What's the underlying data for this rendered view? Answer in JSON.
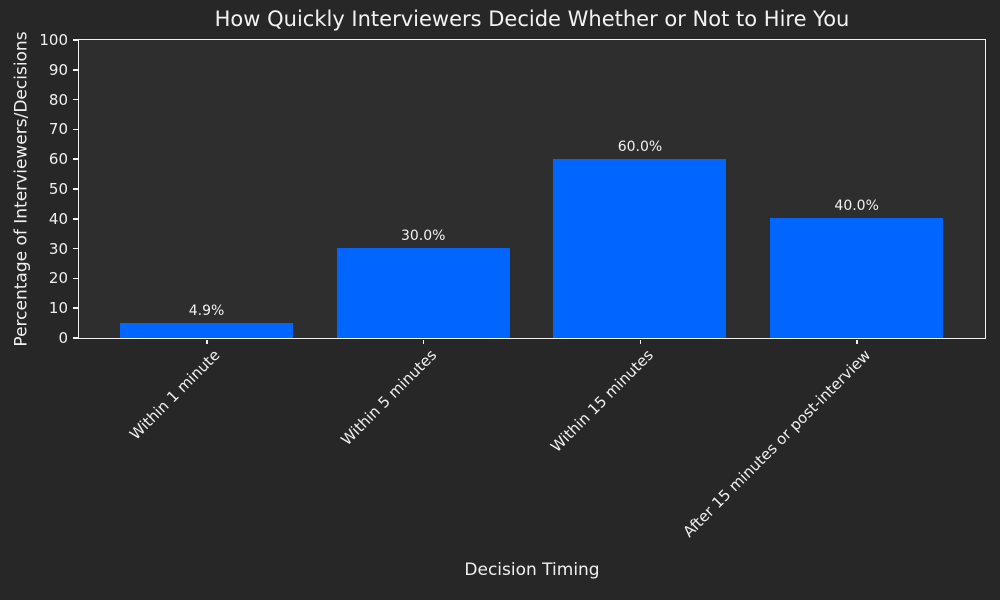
{
  "chart_data": {
    "type": "bar",
    "title": "How Quickly Interviewers Decide Whether or Not to Hire You",
    "xlabel": "Decision Timing",
    "ylabel": "Percentage of Interviewers/Decisions",
    "categories": [
      "Within 1 minute",
      "Within 5 minutes",
      "Within 15 minutes",
      "After 15 minutes or post-interview"
    ],
    "values": [
      4.9,
      30.0,
      60.0,
      40.0
    ],
    "value_labels": [
      "4.9%",
      "30.0%",
      "60.0%",
      "40.0%"
    ],
    "ylim": [
      0,
      100
    ],
    "yticks": [
      0,
      10,
      20,
      30,
      40,
      50,
      60,
      70,
      80,
      90,
      100
    ],
    "x_tick_rotation_deg": 45,
    "grid": false,
    "legend": null,
    "colors": {
      "bar": "#0066ff",
      "figure_background": "#272727",
      "plot_background": "#2e2e2e",
      "spine": "#f2f2f2",
      "text": "#f0f0f0"
    }
  }
}
